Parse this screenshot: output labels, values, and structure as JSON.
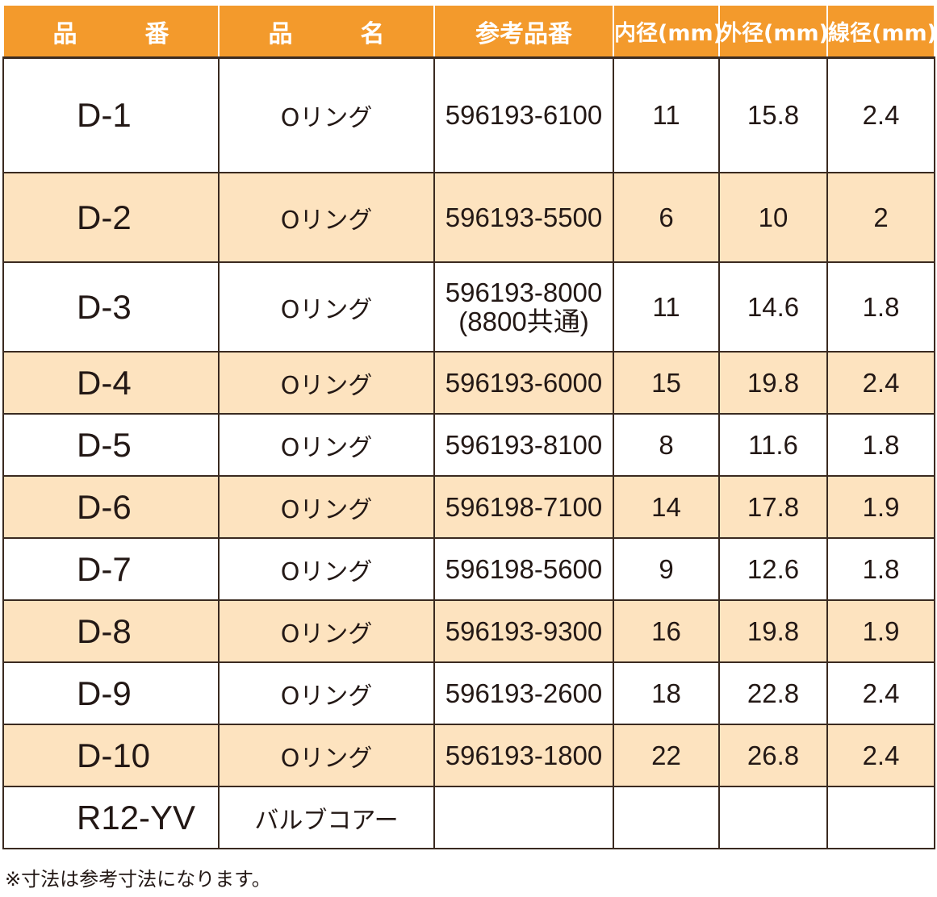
{
  "table": {
    "headers": [
      "品　番",
      "品　名",
      "参考品番",
      "内径(mm)",
      "外径(mm)",
      "線径(mm)"
    ],
    "rows": [
      {
        "code": "D-1",
        "name": "Oリング",
        "ref": "596193-6100",
        "ref2": "",
        "inner": "11",
        "outer": "15.8",
        "wire": "2.4"
      },
      {
        "code": "D-2",
        "name": "Oリング",
        "ref": "596193-5500",
        "ref2": "",
        "inner": "6",
        "outer": "10",
        "wire": "2"
      },
      {
        "code": "D-3",
        "name": "Oリング",
        "ref": "596193-8000",
        "ref2": "(8800共通)",
        "inner": "11",
        "outer": "14.6",
        "wire": "1.8"
      },
      {
        "code": "D-4",
        "name": "Oリング",
        "ref": "596193-6000",
        "ref2": "",
        "inner": "15",
        "outer": "19.8",
        "wire": "2.4"
      },
      {
        "code": "D-5",
        "name": "Oリング",
        "ref": "596193-8100",
        "ref2": "",
        "inner": "8",
        "outer": "11.6",
        "wire": "1.8"
      },
      {
        "code": "D-6",
        "name": "Oリング",
        "ref": "596198-7100",
        "ref2": "",
        "inner": "14",
        "outer": "17.8",
        "wire": "1.9"
      },
      {
        "code": "D-7",
        "name": "Oリング",
        "ref": "596198-5600",
        "ref2": "",
        "inner": "9",
        "outer": "12.6",
        "wire": "1.8"
      },
      {
        "code": "D-8",
        "name": "Oリング",
        "ref": "596193-9300",
        "ref2": "",
        "inner": "16",
        "outer": "19.8",
        "wire": "1.9"
      },
      {
        "code": "D-9",
        "name": "Oリング",
        "ref": "596193-2600",
        "ref2": "",
        "inner": "18",
        "outer": "22.8",
        "wire": "2.4"
      },
      {
        "code": "D-10",
        "name": "Oリング",
        "ref": "596193-1800",
        "ref2": "",
        "inner": "22",
        "outer": "26.8",
        "wire": "2.4"
      },
      {
        "code": "R12-YV",
        "name": "バルブコアー",
        "ref": "",
        "ref2": "",
        "inner": "",
        "outer": "",
        "wire": ""
      }
    ]
  },
  "footnote": "※寸法は参考寸法になります。",
  "colors": {
    "header_bg": "#f39a2c",
    "header_text": "#ffffff",
    "alt_row_bg": "#fde3bf",
    "border": "#3a2a20"
  }
}
